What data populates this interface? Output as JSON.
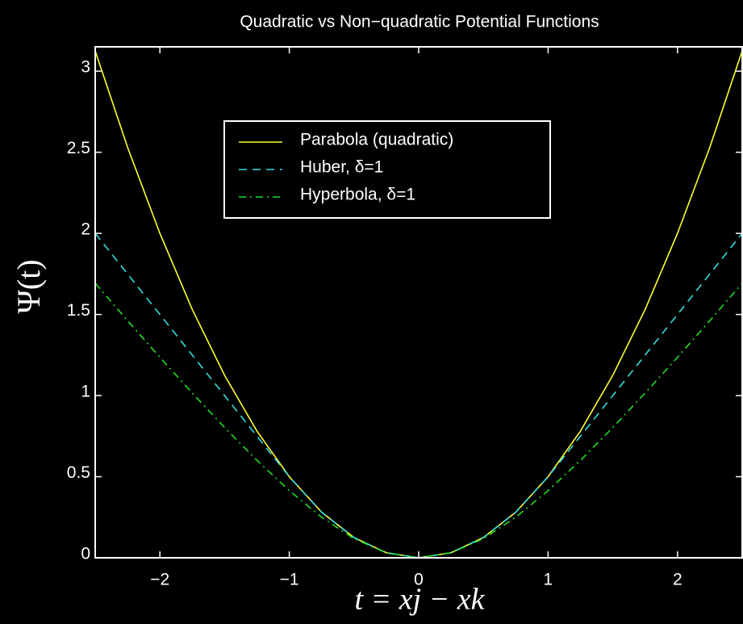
{
  "chart_data": {
    "type": "line",
    "title": "Quadratic vs Non−quadratic Potential Functions",
    "xlabel": "t = xj − xk",
    "ylabel": "Ψ(t)",
    "x": [
      -2.5,
      -2.25,
      -2,
      -1.75,
      -1.5,
      -1.25,
      -1,
      -0.75,
      -0.5,
      -0.25,
      0,
      0.25,
      0.5,
      0.75,
      1,
      1.25,
      1.5,
      1.75,
      2,
      2.25,
      2.5
    ],
    "series": [
      {
        "name": "Parabola (quadratic)",
        "color": "#ffff33",
        "dash": "solid",
        "values": [
          3.125,
          2.531,
          2,
          1.531,
          1.125,
          0.781,
          0.5,
          0.281,
          0.125,
          0.031,
          0,
          0.031,
          0.125,
          0.281,
          0.5,
          0.781,
          1.125,
          1.531,
          2,
          2.531,
          3.125
        ]
      },
      {
        "name": "Huber, δ=1",
        "color": "#33dddd",
        "dash": "dashed",
        "values": [
          2,
          1.75,
          1.5,
          1.25,
          1,
          0.75,
          0.5,
          0.281,
          0.125,
          0.031,
          0,
          0.031,
          0.125,
          0.281,
          0.5,
          0.75,
          1,
          1.25,
          1.5,
          1.75,
          2
        ]
      },
      {
        "name": "Hyperbola, δ=1",
        "color": "#22dd22",
        "dash": "dashdot",
        "values": [
          1.693,
          1.462,
          1.236,
          1.016,
          0.803,
          0.601,
          0.414,
          0.25,
          0.118,
          0.031,
          0,
          0.031,
          0.118,
          0.25,
          0.414,
          0.601,
          0.803,
          1.016,
          1.236,
          1.462,
          1.693
        ]
      }
    ],
    "xlim": [
      -2.5,
      2.5
    ],
    "ylim": [
      0,
      3.15
    ],
    "xticks": [
      {
        "value": -2,
        "label": "−2"
      },
      {
        "value": -1,
        "label": "−1"
      },
      0,
      1,
      2
    ],
    "yticks": [
      0,
      0.5,
      1,
      1.5,
      2,
      2.5,
      3
    ],
    "legend": "top-center"
  }
}
